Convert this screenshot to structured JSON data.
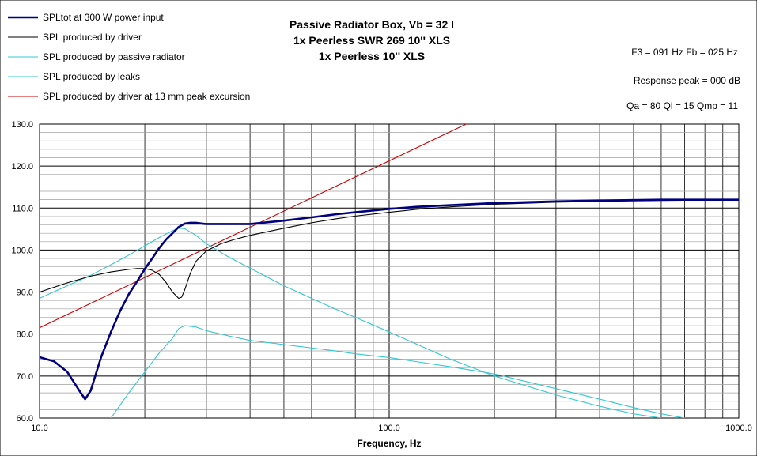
{
  "chart_data": {
    "type": "line",
    "title_lines": [
      "Passive Radiator Box, Vb = 32 l",
      "1x Peerless SWR 269 10'' XLS",
      "1x Peerless 10'' XLS"
    ],
    "info_lines": [
      "F3 = 091 Hz  Fb = 025 Hz",
      "Response peak = 000 dB",
      "Qa = 80  Ql = 15  Qmp = 11"
    ],
    "xlabel": "Frequency, Hz",
    "x_scale": "log",
    "xlim": [
      10,
      1000
    ],
    "ylim": [
      60,
      130
    ],
    "x_tick_labels": [
      {
        "value": 10,
        "label": "10.0"
      },
      {
        "value": 100,
        "label": "100.0"
      },
      {
        "value": 1000,
        "label": "1000.0"
      }
    ],
    "y_tick_labels": [
      {
        "value": 60,
        "label": "60.0"
      },
      {
        "value": 70,
        "label": "70.0"
      },
      {
        "value": 80,
        "label": "80.0"
      },
      {
        "value": 90,
        "label": "90.0"
      },
      {
        "value": 100,
        "label": "100.0"
      },
      {
        "value": 110,
        "label": "110.0"
      },
      {
        "value": 120,
        "label": "120.0"
      },
      {
        "value": 130,
        "label": "130.0"
      }
    ],
    "grid": true,
    "legend_position": "top-left",
    "series": [
      {
        "name": "SPLtot at 300 W power input",
        "color": "#000080",
        "bold": true,
        "x": [
          10,
          11,
          12,
          13,
          13.5,
          14,
          15,
          16,
          17,
          18,
          19,
          20,
          21,
          22,
          23,
          24,
          25,
          26,
          27,
          28,
          30,
          35,
          40,
          50,
          60,
          70,
          80,
          100,
          120,
          150,
          200,
          300,
          400,
          600,
          800,
          1000
        ],
        "y": [
          74.5,
          73.5,
          71,
          66.5,
          64.5,
          66.5,
          74.5,
          80.5,
          85.5,
          89.5,
          92.5,
          95.5,
          98,
          100.5,
          102.5,
          104,
          105.5,
          106.3,
          106.5,
          106.5,
          106.2,
          106.2,
          106.2,
          107,
          107.8,
          108.5,
          109,
          109.8,
          110.3,
          110.7,
          111.2,
          111.6,
          111.8,
          112,
          112,
          112
        ]
      },
      {
        "name": "SPL produced by driver",
        "color": "#000000",
        "bold": false,
        "x": [
          10,
          12,
          14,
          16,
          18,
          19,
          20,
          21,
          22,
          23,
          24,
          25,
          25.5,
          26,
          27,
          28,
          30,
          33,
          36,
          40,
          50,
          60,
          70,
          80,
          100,
          120,
          150,
          200,
          300,
          400,
          600,
          800,
          1000
        ],
        "y": [
          90,
          92.2,
          93.8,
          94.8,
          95.4,
          95.6,
          95.6,
          95.2,
          94.2,
          92.3,
          90,
          88.5,
          88.8,
          90.5,
          94.5,
          97.3,
          99.8,
          101.5,
          102.5,
          103.5,
          105.2,
          106.5,
          107.4,
          108.1,
          109,
          109.7,
          110.3,
          110.9,
          111.4,
          111.6,
          111.8,
          111.9,
          112
        ]
      },
      {
        "name": "SPL produced by passive radiator",
        "color": "#33C7D3",
        "bold": false,
        "x": [
          10,
          12,
          14,
          16,
          18,
          20,
          22,
          24,
          25,
          26,
          28,
          30,
          35,
          40,
          50,
          60,
          70,
          80,
          100,
          150,
          200,
          300,
          400,
          500,
          600
        ],
        "y": [
          88.5,
          91.5,
          94,
          96.5,
          98.8,
          101,
          103,
          104.6,
          105.2,
          105.1,
          103.5,
          101.5,
          98.2,
          95.7,
          91.5,
          88.5,
          86,
          84,
          80.5,
          74,
          70,
          65.5,
          62.8,
          61,
          60
        ]
      },
      {
        "name": "SPL produced by leaks",
        "color": "#33C7D3",
        "bold": false,
        "x": [
          16,
          18,
          20,
          22,
          24,
          25,
          26,
          28,
          30,
          35,
          40,
          50,
          60,
          70,
          80,
          100,
          150,
          200,
          300,
          400,
          500,
          600,
          700
        ],
        "y": [
          60,
          66,
          71,
          75.5,
          79,
          81.3,
          82,
          81.7,
          80.8,
          79.5,
          78.5,
          77.5,
          76.7,
          76,
          75.3,
          74.4,
          72.2,
          70.5,
          67,
          64.5,
          62.5,
          61,
          60
        ]
      },
      {
        "name": "SPL produced by driver at 13 mm peak excursion",
        "color": "#CC0000",
        "bold": false,
        "x": [
          10,
          166
        ],
        "y": [
          81.5,
          130
        ]
      }
    ]
  }
}
